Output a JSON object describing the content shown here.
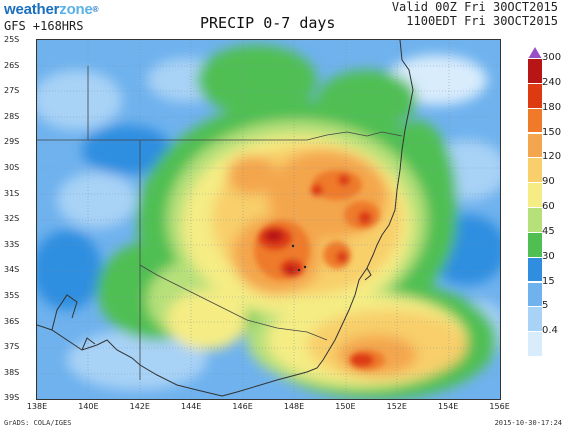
{
  "header": {
    "logo_part1": "weather",
    "logo_part2": "zone",
    "logo_mark": "®",
    "model": "GFS +168HRS",
    "title": "PRECIP 0-7 days",
    "valid_line1": "Valid 00Z Fri 30OCT2015",
    "valid_line2": "1100EDT Fri 30OCT2015"
  },
  "map": {
    "lat_labels": [
      "25S",
      "26S",
      "27S",
      "28S",
      "29S",
      "30S",
      "31S",
      "32S",
      "33S",
      "34S",
      "35S",
      "36S",
      "37S",
      "38S",
      "39S"
    ],
    "lon_labels": [
      "138E",
      "140E",
      "142E",
      "144E",
      "146E",
      "148E",
      "150E",
      "152E",
      "154E",
      "156E"
    ]
  },
  "legend": {
    "labels": [
      "300",
      "240",
      "180",
      "150",
      "120",
      "90",
      "60",
      "45",
      "30",
      "15",
      "5",
      "0.4"
    ],
    "colors": [
      "#9a4fc8",
      "#b81616",
      "#dd3a12",
      "#ee7a2a",
      "#f4a64e",
      "#f8cf6a",
      "#f5ec84",
      "#b6e07a",
      "#4fbf52",
      "#2f8ee0",
      "#6fb2ee",
      "#a8d2f6",
      "#d8ecfc"
    ]
  },
  "footer": {
    "credit": "GrADS: COLA/IGES",
    "timestamp": "2015-10-30-17:24"
  }
}
